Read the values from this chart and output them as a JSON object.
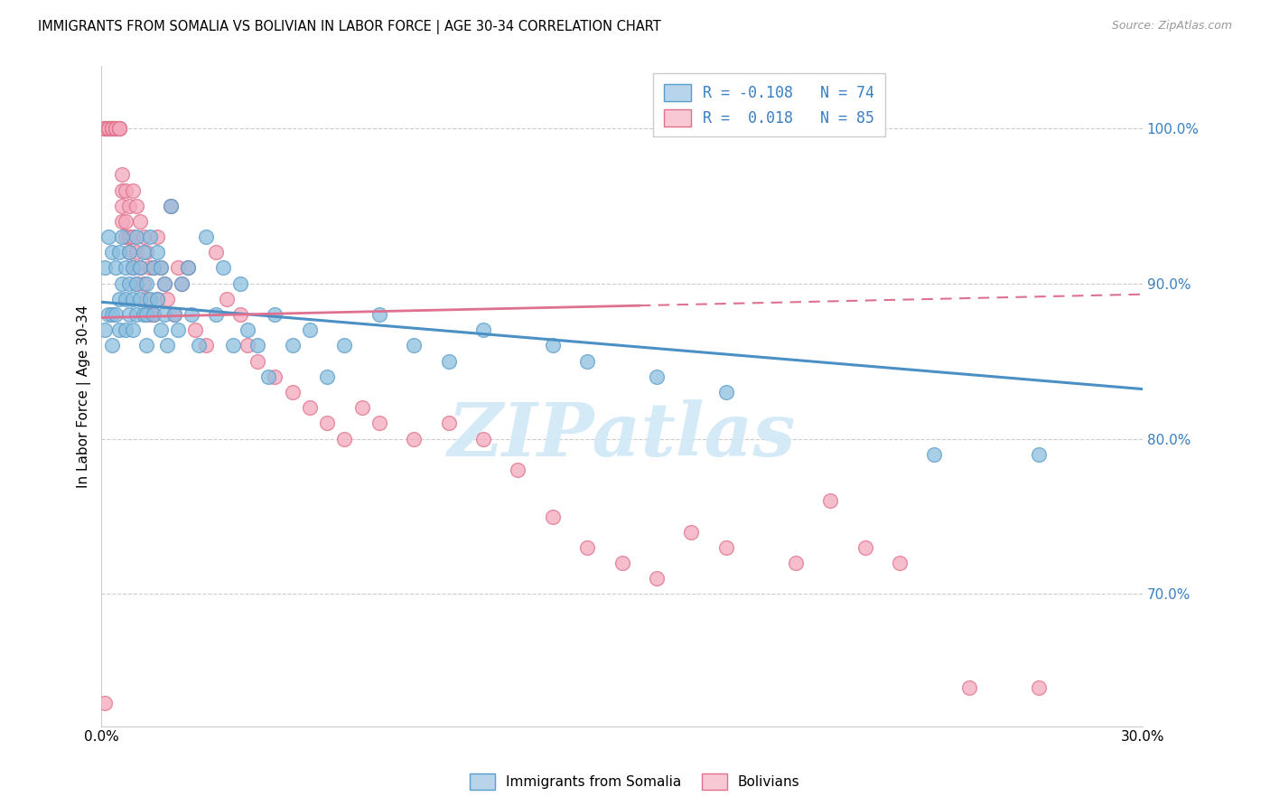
{
  "title": "IMMIGRANTS FROM SOMALIA VS BOLIVIAN IN LABOR FORCE | AGE 30-34 CORRELATION CHART",
  "source": "Source: ZipAtlas.com",
  "ylabel": "In Labor Force | Age 30-34",
  "ylabel_right_labels": [
    "100.0%",
    "90.0%",
    "80.0%",
    "70.0%"
  ],
  "ylabel_right_values": [
    1.0,
    0.9,
    0.8,
    0.7
  ],
  "xmin": 0.0,
  "xmax": 0.3,
  "ymin": 0.615,
  "ymax": 1.04,
  "legend_R_somalia": "R = -0.108",
  "legend_N_somalia": "N = 74",
  "legend_R_bolivia": "R =  0.018",
  "legend_N_bolivia": "N = 85",
  "somalia_color": "#8cbfdf",
  "somalia_edge": "#5b9dc9",
  "bolivia_color": "#f4a8bc",
  "bolivia_edge": "#e0708a",
  "trend_somalia_color": "#4a90c4",
  "trend_bolivia_color": "#e07090",
  "background_color": "#ffffff",
  "grid_color": "#cccccc",
  "watermark": "ZIPatlas",
  "watermark_color": "#d0e8f5",
  "trend_somalia_x0": 0.0,
  "trend_somalia_y0": 0.888,
  "trend_somalia_x1": 0.3,
  "trend_somalia_y1": 0.832,
  "trend_bolivia_x0": 0.0,
  "trend_bolivia_y0": 0.878,
  "trend_bolivia_x1": 0.3,
  "trend_bolivia_y1": 0.893,
  "trend_bolivia_solid_end": 0.155,
  "somalia_x": [
    0.001,
    0.001,
    0.002,
    0.002,
    0.003,
    0.003,
    0.003,
    0.004,
    0.004,
    0.005,
    0.005,
    0.005,
    0.006,
    0.006,
    0.007,
    0.007,
    0.007,
    0.008,
    0.008,
    0.008,
    0.009,
    0.009,
    0.009,
    0.01,
    0.01,
    0.01,
    0.011,
    0.011,
    0.012,
    0.012,
    0.013,
    0.013,
    0.013,
    0.014,
    0.014,
    0.015,
    0.015,
    0.016,
    0.016,
    0.017,
    0.017,
    0.018,
    0.018,
    0.019,
    0.02,
    0.021,
    0.022,
    0.023,
    0.025,
    0.026,
    0.028,
    0.03,
    0.033,
    0.035,
    0.038,
    0.04,
    0.042,
    0.045,
    0.048,
    0.05,
    0.055,
    0.06,
    0.065,
    0.07,
    0.08,
    0.09,
    0.1,
    0.11,
    0.13,
    0.14,
    0.16,
    0.18,
    0.24,
    0.27
  ],
  "somalia_y": [
    0.91,
    0.87,
    0.93,
    0.88,
    0.92,
    0.88,
    0.86,
    0.91,
    0.88,
    0.92,
    0.89,
    0.87,
    0.93,
    0.9,
    0.91,
    0.89,
    0.87,
    0.92,
    0.9,
    0.88,
    0.91,
    0.89,
    0.87,
    0.93,
    0.9,
    0.88,
    0.91,
    0.89,
    0.92,
    0.88,
    0.9,
    0.88,
    0.86,
    0.93,
    0.89,
    0.91,
    0.88,
    0.92,
    0.89,
    0.91,
    0.87,
    0.9,
    0.88,
    0.86,
    0.95,
    0.88,
    0.87,
    0.9,
    0.91,
    0.88,
    0.86,
    0.93,
    0.88,
    0.91,
    0.86,
    0.9,
    0.87,
    0.86,
    0.84,
    0.88,
    0.86,
    0.87,
    0.84,
    0.86,
    0.88,
    0.86,
    0.85,
    0.87,
    0.86,
    0.85,
    0.84,
    0.83,
    0.79,
    0.79
  ],
  "bolivia_x": [
    0.001,
    0.001,
    0.001,
    0.001,
    0.002,
    0.002,
    0.002,
    0.002,
    0.003,
    0.003,
    0.003,
    0.003,
    0.004,
    0.004,
    0.004,
    0.005,
    0.005,
    0.005,
    0.006,
    0.006,
    0.006,
    0.006,
    0.007,
    0.007,
    0.007,
    0.008,
    0.008,
    0.008,
    0.009,
    0.009,
    0.009,
    0.01,
    0.01,
    0.01,
    0.011,
    0.011,
    0.012,
    0.012,
    0.013,
    0.013,
    0.014,
    0.014,
    0.015,
    0.015,
    0.016,
    0.016,
    0.017,
    0.018,
    0.019,
    0.02,
    0.021,
    0.022,
    0.023,
    0.025,
    0.027,
    0.03,
    0.033,
    0.036,
    0.04,
    0.042,
    0.045,
    0.05,
    0.055,
    0.06,
    0.065,
    0.07,
    0.075,
    0.08,
    0.09,
    0.1,
    0.11,
    0.12,
    0.13,
    0.14,
    0.15,
    0.16,
    0.17,
    0.18,
    0.2,
    0.21,
    0.22,
    0.23,
    0.25,
    0.27,
    0.001
  ],
  "bolivia_y": [
    1.0,
    1.0,
    1.0,
    1.0,
    1.0,
    1.0,
    1.0,
    1.0,
    1.0,
    1.0,
    1.0,
    1.0,
    1.0,
    1.0,
    1.0,
    1.0,
    1.0,
    1.0,
    0.97,
    0.96,
    0.95,
    0.94,
    0.96,
    0.94,
    0.93,
    0.95,
    0.93,
    0.92,
    0.96,
    0.93,
    0.91,
    0.95,
    0.92,
    0.9,
    0.94,
    0.91,
    0.93,
    0.9,
    0.92,
    0.89,
    0.91,
    0.88,
    0.91,
    0.88,
    0.93,
    0.89,
    0.91,
    0.9,
    0.89,
    0.95,
    0.88,
    0.91,
    0.9,
    0.91,
    0.87,
    0.86,
    0.92,
    0.89,
    0.88,
    0.86,
    0.85,
    0.84,
    0.83,
    0.82,
    0.81,
    0.8,
    0.82,
    0.81,
    0.8,
    0.81,
    0.8,
    0.78,
    0.75,
    0.73,
    0.72,
    0.71,
    0.74,
    0.73,
    0.72,
    0.76,
    0.73,
    0.72,
    0.64,
    0.64,
    0.63
  ]
}
